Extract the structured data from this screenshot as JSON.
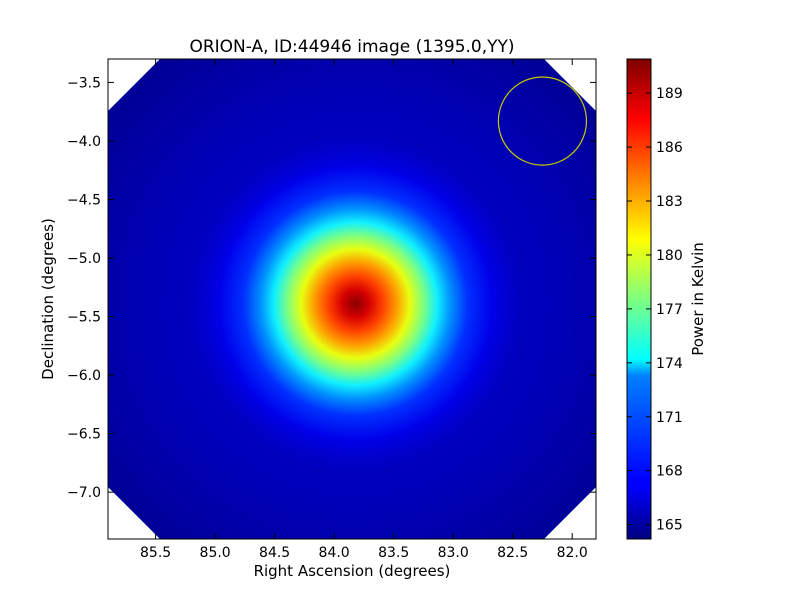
{
  "chart_data": {
    "type": "heatmap",
    "title": "ORION-A, ID:44946 image (1395.0,YY)",
    "xlabel": "Right Ascension (degrees)",
    "ylabel": "Declination (degrees)",
    "colorbar_label": "Power in Kelvin",
    "colormap": "jet",
    "xlim": [
      85.9,
      81.8
    ],
    "ylim": [
      -7.4,
      -3.3
    ],
    "xticks": [
      85.5,
      85.0,
      84.5,
      84.0,
      83.5,
      83.0,
      82.5,
      82.0
    ],
    "xtick_labels": [
      "85.5",
      "85.0",
      "84.5",
      "84.0",
      "83.5",
      "83.0",
      "82.5",
      "82.0"
    ],
    "yticks": [
      -3.5,
      -4.0,
      -4.5,
      -5.0,
      -5.5,
      -6.0,
      -6.5,
      -7.0
    ],
    "ytick_labels": [
      "−3.5",
      "−4.0",
      "−4.5",
      "−5.0",
      "−5.5",
      "−6.0",
      "−6.5",
      "−7.0"
    ],
    "color_range": [
      164.2,
      190.9
    ],
    "colorbar_ticks": [
      165,
      168,
      171,
      174,
      177,
      180,
      183,
      186,
      189
    ],
    "colorbar_tick_labels": [
      "165",
      "168",
      "171",
      "174",
      "177",
      "180",
      "183",
      "186",
      "189"
    ],
    "source_peak": {
      "ra": 83.82,
      "dec": -5.39,
      "value": 190.5
    },
    "background_value": 165.2,
    "beam_circle": {
      "ra": 82.25,
      "dec": -3.83,
      "radius_deg": 0.37,
      "color": "#c8c800"
    },
    "grid": false
  }
}
